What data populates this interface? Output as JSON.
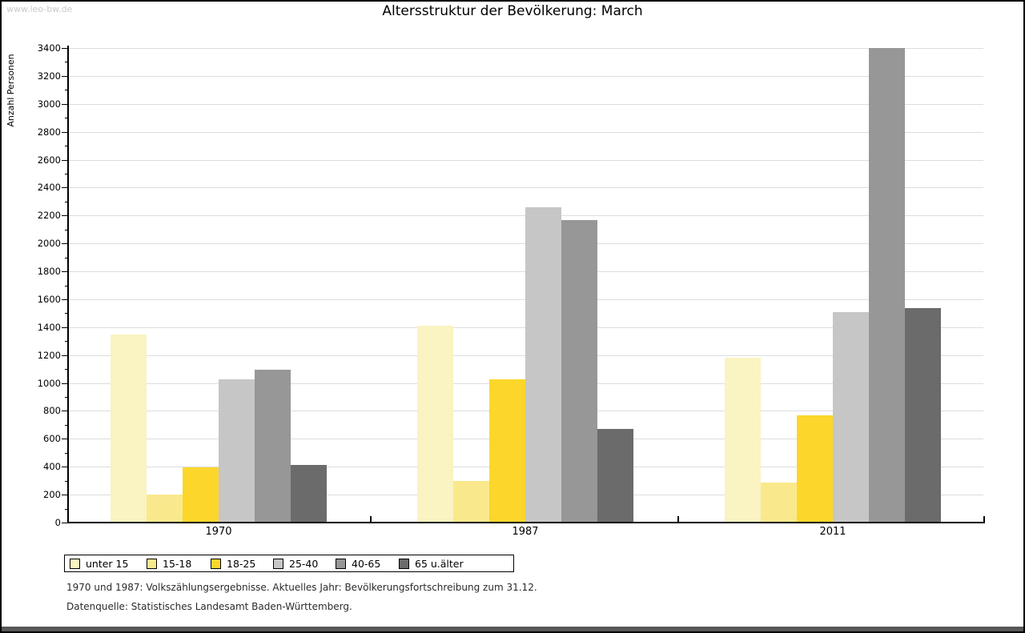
{
  "page": {
    "watermark": "www.leo-bw.de",
    "title": "Altersstruktur der Bevölkerung: March",
    "footnote_line1": "1970 und 1987: Volkszählungsergebnisse. Aktuelles Jahr: Bevölkerungsfortschreibung zum 31.12.",
    "footnote_line2": "Datenquelle: Statistisches Landesamt Baden-Württemberg."
  },
  "chart_data": {
    "type": "bar",
    "title": "Altersstruktur der Bevölkerung: March",
    "xlabel": "",
    "ylabel": "Anzahl Personen",
    "categories": [
      "1970",
      "1987",
      "2011"
    ],
    "series": [
      {
        "name": "unter 15",
        "color": "#FAF3C2",
        "values": [
          1350,
          1410,
          1180
        ]
      },
      {
        "name": "15-18",
        "color": "#FAE98C",
        "values": [
          200,
          300,
          285
        ]
      },
      {
        "name": "18-25",
        "color": "#FCD62B",
        "values": [
          395,
          1025,
          770
        ]
      },
      {
        "name": "25-40",
        "color": "#C6C6C6",
        "values": [
          1025,
          2260,
          1510
        ]
      },
      {
        "name": "40-65",
        "color": "#979797",
        "values": [
          1095,
          2170,
          3400
        ]
      },
      {
        "name": "65 u.älter",
        "color": "#6B6B6B",
        "values": [
          410,
          670,
          1535
        ]
      }
    ],
    "ylim": [
      0,
      3400
    ],
    "ytick_step": 200,
    "yminortick_step": 100,
    "grid": true,
    "legend_position": "bottom-left"
  }
}
